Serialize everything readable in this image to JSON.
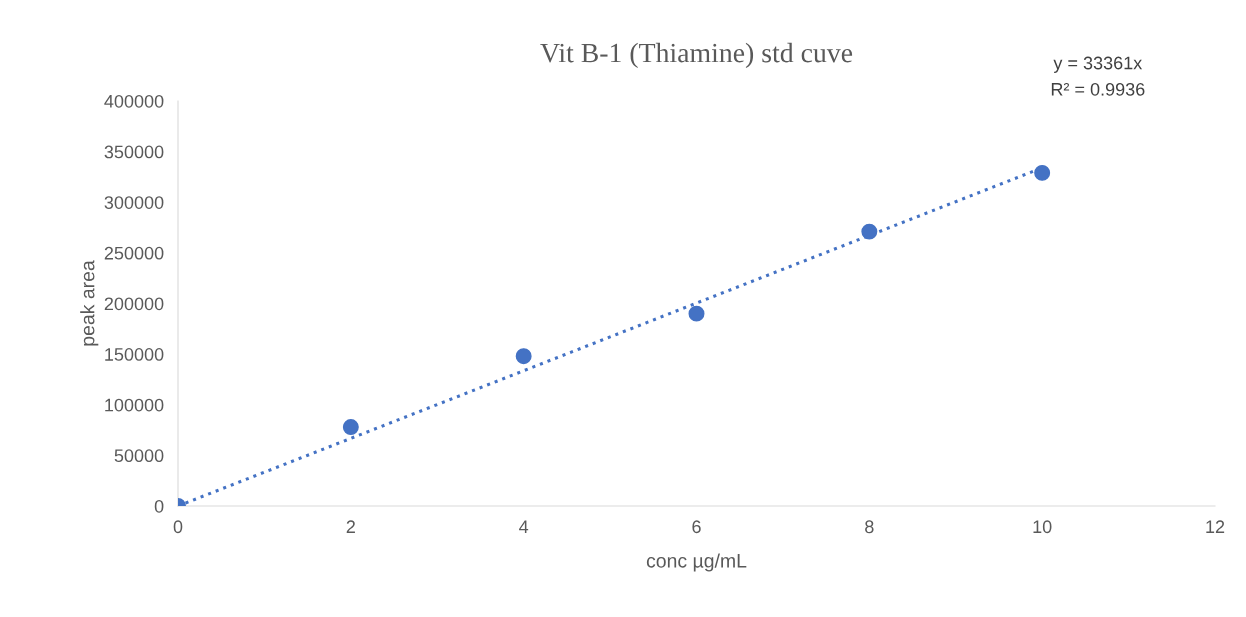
{
  "chart_data": {
    "type": "scatter",
    "title": "Vit B-1 (Thiamine) std cuve",
    "xlabel": "conc µg/mL",
    "ylabel": "peak area",
    "xlim": [
      0,
      12
    ],
    "xticks": [
      0,
      2,
      4,
      6,
      8,
      10,
      12
    ],
    "ylim": [
      0,
      400000
    ],
    "yticks": [
      0,
      50000,
      100000,
      150000,
      200000,
      250000,
      300000,
      350000,
      400000
    ],
    "grid": false,
    "legend": false,
    "series": [
      {
        "color": "#4472c4",
        "marker": "circle",
        "x": [
          0,
          2,
          4,
          6,
          8,
          10
        ],
        "values": [
          0,
          78000,
          148000,
          190000,
          271000,
          329000
        ]
      },
      {
        "type": "line",
        "color": "#4472c4",
        "line_style": "dotted",
        "x": [
          0,
          10
        ],
        "values": [
          0,
          334000
        ]
      }
    ],
    "annotations": [
      "y = 33361x",
      "R² = 0.9936"
    ]
  }
}
